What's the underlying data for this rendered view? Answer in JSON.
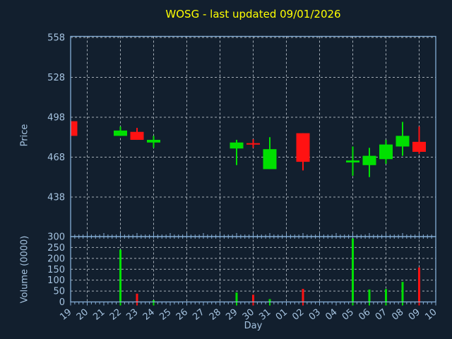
{
  "title": "WOSG - last updated 09/01/2026",
  "colors": {
    "background": "#121f2e",
    "title": "#ffff00",
    "axis_border": "#85aed6",
    "tick_label": "#a5c3e0",
    "grid": "#c9d1d9",
    "up": "#00e000",
    "down": "#ff1212"
  },
  "axes": {
    "price": {
      "label": "Price",
      "ticks": [
        558,
        528,
        498,
        468,
        438
      ]
    },
    "volume": {
      "label": "Volume (0000)",
      "ticks": [
        300,
        250,
        200,
        150,
        100,
        50,
        0
      ]
    },
    "x": {
      "label": "Day",
      "categories": [
        "19",
        "20",
        "21",
        "22",
        "23",
        "24",
        "25",
        "26",
        "27",
        "28",
        "29",
        "30",
        "31",
        "01",
        "02",
        "03",
        "04",
        "05",
        "06",
        "07",
        "08",
        "09",
        "10"
      ]
    }
  },
  "chart_data": [
    {
      "type": "candlestick",
      "title": "WOSG - last updated 09/01/2026",
      "xlabel": "Day",
      "ylabel": "Price",
      "ylim": [
        408,
        566
      ],
      "y_ticks": [
        558,
        528,
        498,
        468,
        438
      ],
      "grid": "dashed, horizontal every 30, vertical every 2 days",
      "legend": "none",
      "x_categories": [
        "19",
        "20",
        "21",
        "22",
        "23",
        "24",
        "25",
        "26",
        "27",
        "28",
        "29",
        "30",
        "31",
        "01",
        "02",
        "03",
        "04",
        "05",
        "06",
        "07",
        "08",
        "09",
        "10"
      ],
      "series": [
        {
          "name": "WOSG daily OHLC",
          "points": [
            {
              "day": "19",
              "open": 495,
              "high": 495,
              "low": 484,
              "close": 484,
              "direction": "down"
            },
            {
              "day": "22",
              "open": 484,
              "high": 491,
              "low": 484,
              "close": 488,
              "direction": "up"
            },
            {
              "day": "23",
              "open": 487,
              "high": 490,
              "low": 481,
              "close": 481,
              "direction": "down"
            },
            {
              "day": "24",
              "open": 479,
              "high": 484,
              "low": 475,
              "close": 481,
              "direction": "up"
            },
            {
              "day": "29",
              "open": 474.5,
              "high": 481,
              "low": 462,
              "close": 479,
              "direction": "up"
            },
            {
              "day": "30",
              "open": 478.5,
              "high": 481.5,
              "low": 475,
              "close": 478,
              "direction": "down"
            },
            {
              "day": "31",
              "open": 459,
              "high": 483,
              "low": 459,
              "close": 474,
              "direction": "up"
            },
            {
              "day": "02",
              "open": 486,
              "high": 486,
              "low": 458,
              "close": 464.5,
              "direction": "down"
            },
            {
              "day": "05",
              "open": 464,
              "high": 476,
              "low": 454,
              "close": 465.5,
              "direction": "up"
            },
            {
              "day": "06",
              "open": 462,
              "high": 475,
              "low": 453,
              "close": 469,
              "direction": "up"
            },
            {
              "day": "07",
              "open": 466.5,
              "high": 481,
              "low": 463,
              "close": 477.5,
              "direction": "up"
            },
            {
              "day": "08",
              "open": 476,
              "high": 494.5,
              "low": 469,
              "close": 484,
              "direction": "up"
            },
            {
              "day": "09",
              "open": 479.5,
              "high": 491,
              "low": 470.5,
              "close": 472,
              "direction": "down"
            }
          ]
        }
      ]
    },
    {
      "type": "bar",
      "xlabel": "Day",
      "ylabel": "Volume (0000)",
      "ylim": [
        0,
        300
      ],
      "y_ticks": [
        300,
        250,
        200,
        150,
        100,
        50,
        0
      ],
      "points": [
        {
          "day": "22",
          "value": 240,
          "direction": "up"
        },
        {
          "day": "23",
          "value": 38,
          "direction": "down"
        },
        {
          "day": "24",
          "value": 8,
          "direction": "up"
        },
        {
          "day": "29",
          "value": 43,
          "direction": "up"
        },
        {
          "day": "30",
          "value": 33,
          "direction": "down"
        },
        {
          "day": "31",
          "value": 13,
          "direction": "up"
        },
        {
          "day": "02",
          "value": 60,
          "direction": "down"
        },
        {
          "day": "05",
          "value": 292,
          "direction": "up"
        },
        {
          "day": "06",
          "value": 57,
          "direction": "up"
        },
        {
          "day": "07",
          "value": 59,
          "direction": "up"
        },
        {
          "day": "08",
          "value": 92,
          "direction": "up"
        },
        {
          "day": "09",
          "value": 158,
          "direction": "down"
        }
      ]
    }
  ]
}
